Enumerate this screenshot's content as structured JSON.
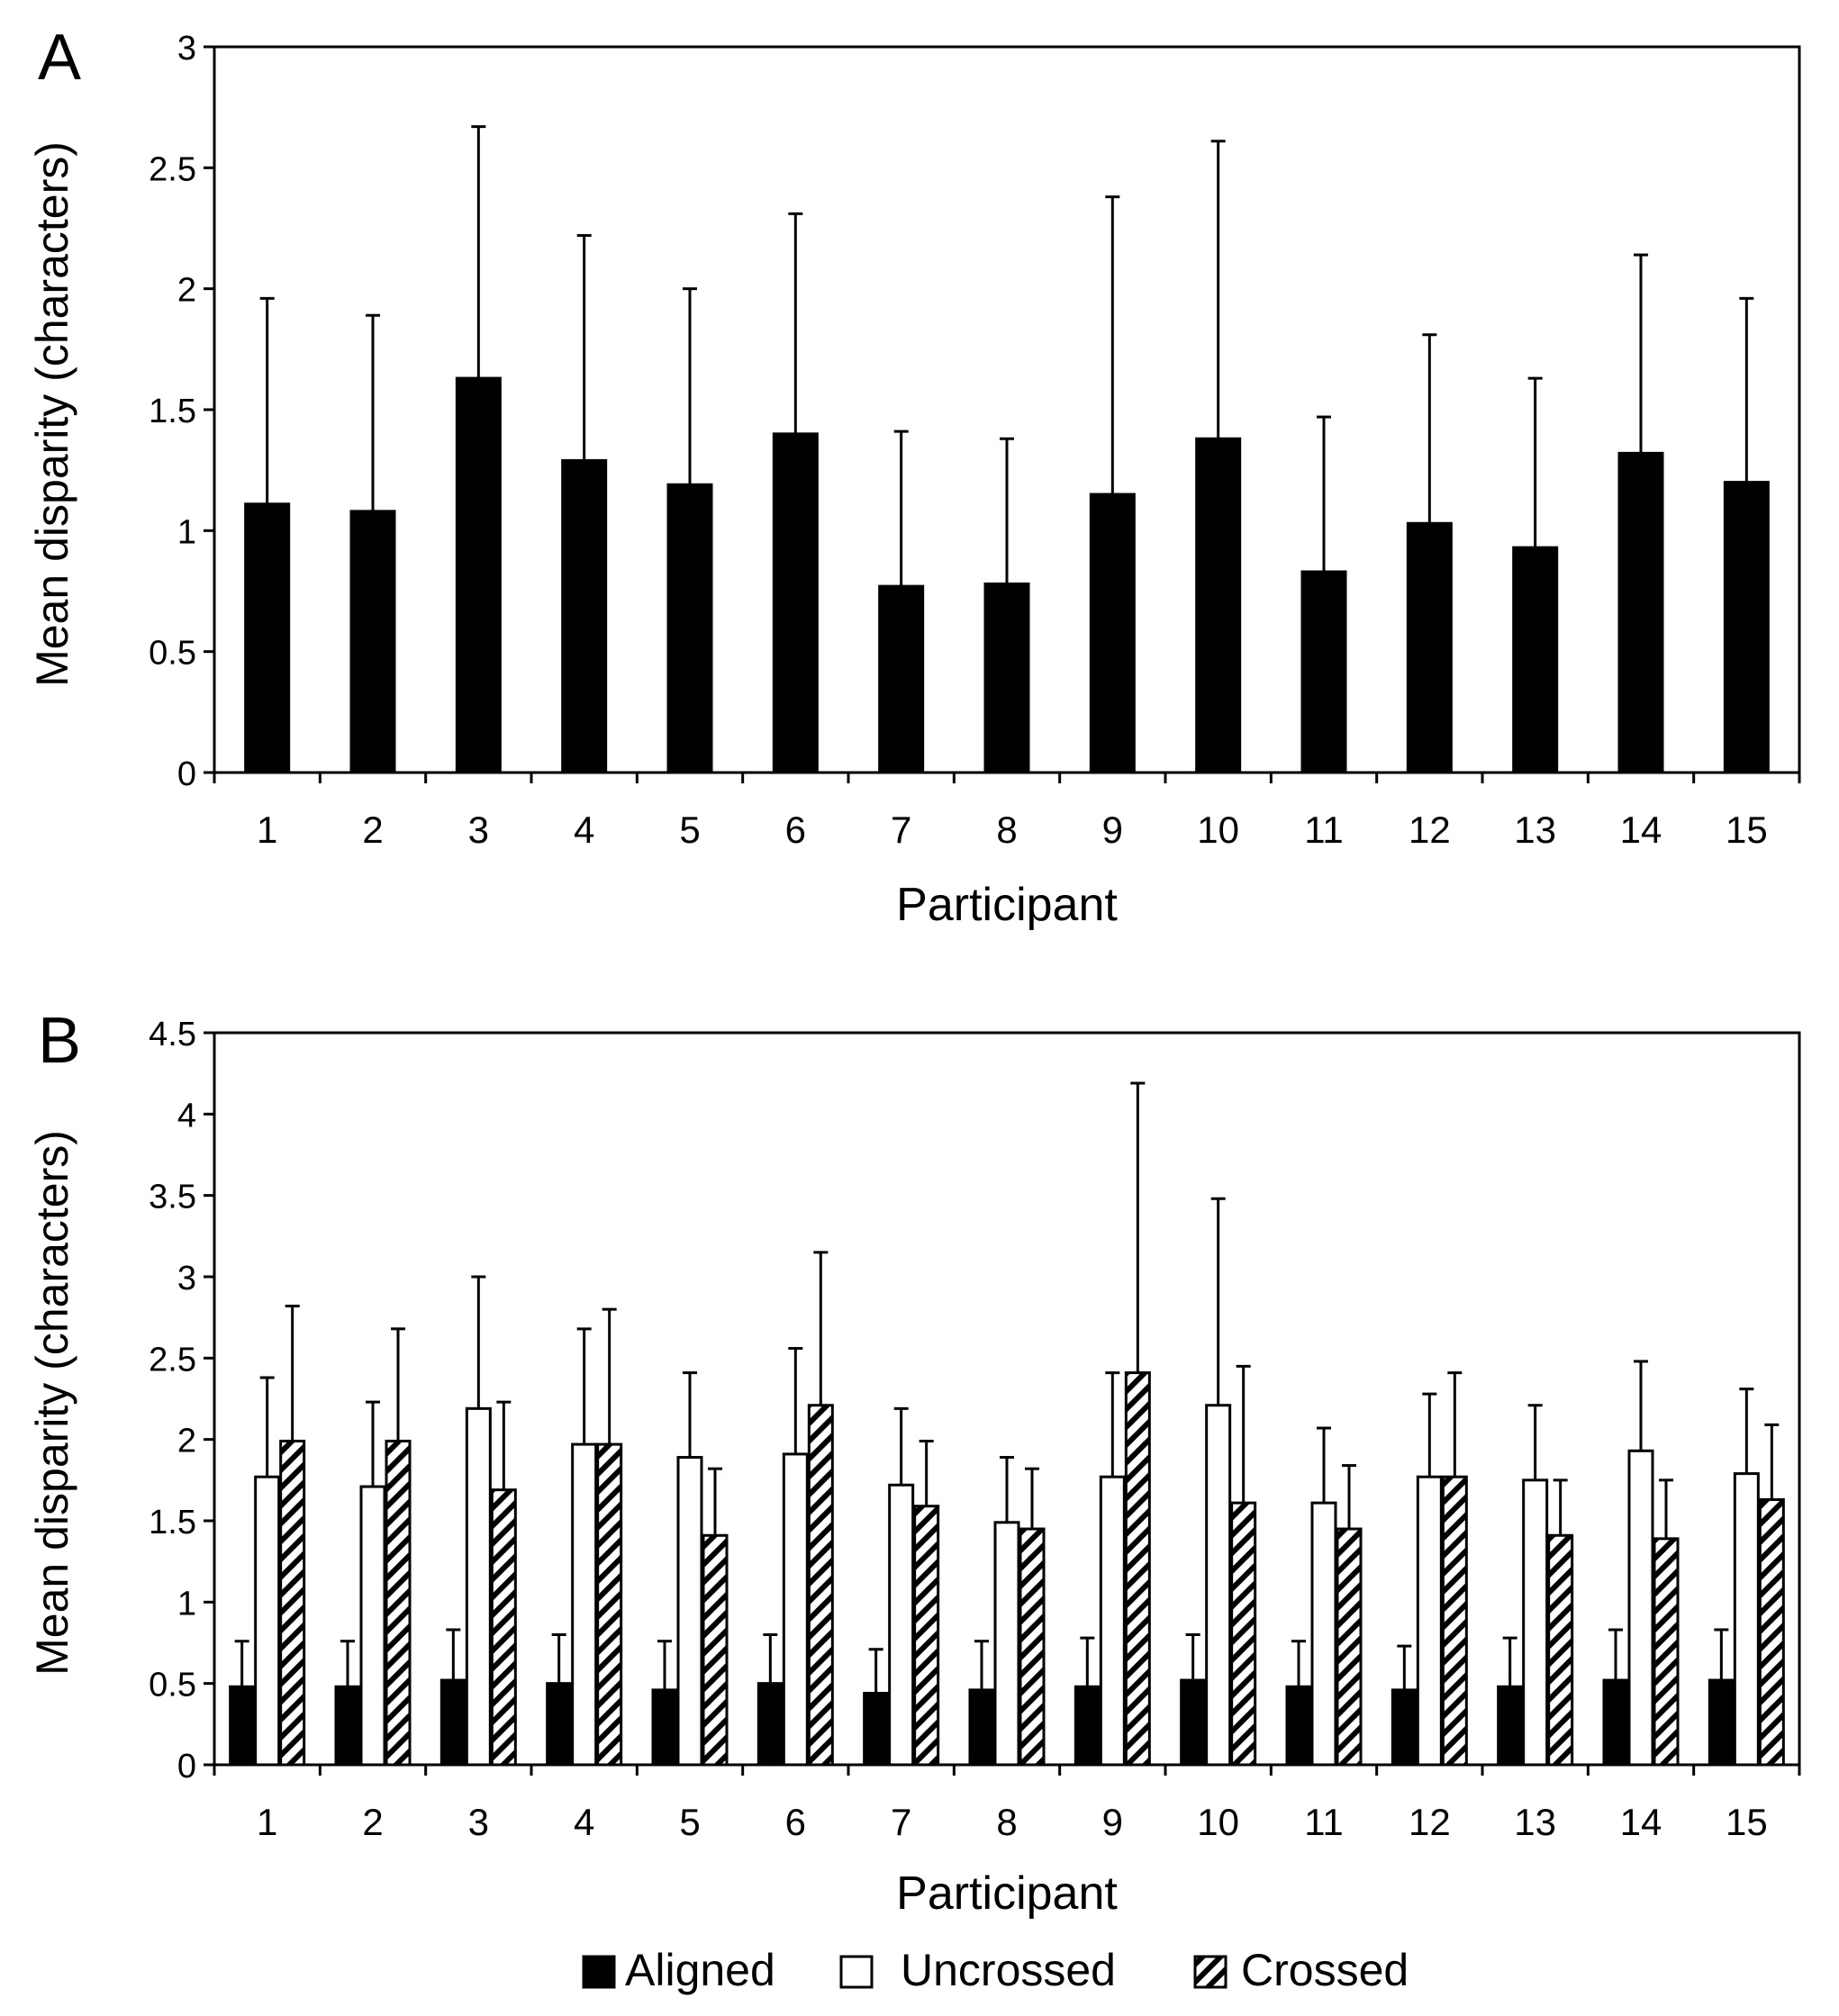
{
  "chart_data": [
    {
      "panel_label": "A",
      "type": "bar",
      "title": "",
      "xlabel": "Participant",
      "ylabel": "Mean disparity (characters)",
      "ylim": [
        0,
        3
      ],
      "yticks": [
        "0",
        "0.5",
        "1",
        "1.5",
        "2",
        "2.5",
        "3"
      ],
      "categories": [
        "1",
        "2",
        "3",
        "4",
        "5",
        "6",
        "7",
        "8",
        "9",
        "10",
        "11",
        "12",
        "13",
        "14",
        "15"
      ],
      "series": [
        {
          "name": "Mean disparity",
          "fill": "solid",
          "values": [
            1.11,
            1.08,
            1.63,
            1.29,
            1.19,
            1.4,
            0.77,
            0.78,
            1.15,
            1.38,
            0.83,
            1.03,
            0.93,
            1.32,
            1.2
          ],
          "error_upper": [
            1.96,
            1.89,
            2.67,
            2.22,
            2.0,
            2.31,
            1.41,
            1.38,
            2.38,
            2.61,
            1.47,
            1.81,
            1.63,
            2.14,
            1.96
          ]
        }
      ],
      "grid": false
    },
    {
      "panel_label": "B",
      "type": "bar",
      "title": "",
      "xlabel": "Participant",
      "ylabel": "Mean disparity (characters)",
      "ylim": [
        0,
        4.5
      ],
      "yticks": [
        "0",
        "0.5",
        "1",
        "1.5",
        "2",
        "2.5",
        "3",
        "3.5",
        "4",
        "4.5"
      ],
      "categories": [
        "1",
        "2",
        "3",
        "4",
        "5",
        "6",
        "7",
        "8",
        "9",
        "10",
        "11",
        "12",
        "13",
        "14",
        "15"
      ],
      "series": [
        {
          "name": "Aligned",
          "fill": "solid",
          "values": [
            0.48,
            0.48,
            0.52,
            0.5,
            0.46,
            0.5,
            0.44,
            0.46,
            0.48,
            0.52,
            0.48,
            0.46,
            0.48,
            0.52,
            0.52
          ],
          "error_upper": [
            0.76,
            0.76,
            0.83,
            0.8,
            0.76,
            0.8,
            0.71,
            0.76,
            0.78,
            0.8,
            0.76,
            0.73,
            0.78,
            0.83,
            0.83
          ]
        },
        {
          "name": "Uncrossed",
          "fill": "open",
          "values": [
            1.77,
            1.71,
            2.19,
            1.97,
            1.89,
            1.91,
            1.72,
            1.49,
            1.77,
            2.21,
            1.61,
            1.77,
            1.75,
            1.93,
            1.79
          ],
          "error_upper": [
            2.38,
            2.23,
            3.0,
            2.68,
            2.41,
            2.56,
            2.19,
            1.89,
            2.41,
            3.48,
            2.07,
            2.28,
            2.21,
            2.48,
            2.31
          ]
        },
        {
          "name": "Crossed",
          "fill": "hatched",
          "values": [
            1.99,
            1.99,
            1.69,
            1.97,
            1.41,
            2.21,
            1.59,
            1.45,
            2.41,
            1.61,
            1.45,
            1.77,
            1.41,
            1.39,
            1.63
          ],
          "error_upper": [
            2.82,
            2.68,
            2.23,
            2.8,
            1.82,
            3.15,
            1.99,
            1.82,
            4.19,
            2.45,
            1.84,
            2.41,
            1.75,
            1.75,
            2.09
          ]
        }
      ],
      "legend": {
        "position": "bottom",
        "entries": [
          "Aligned",
          "Uncrossed",
          "Crossed"
        ]
      },
      "grid": false
    }
  ],
  "colors": {
    "ink": "#000000",
    "paper": "#ffffff"
  }
}
